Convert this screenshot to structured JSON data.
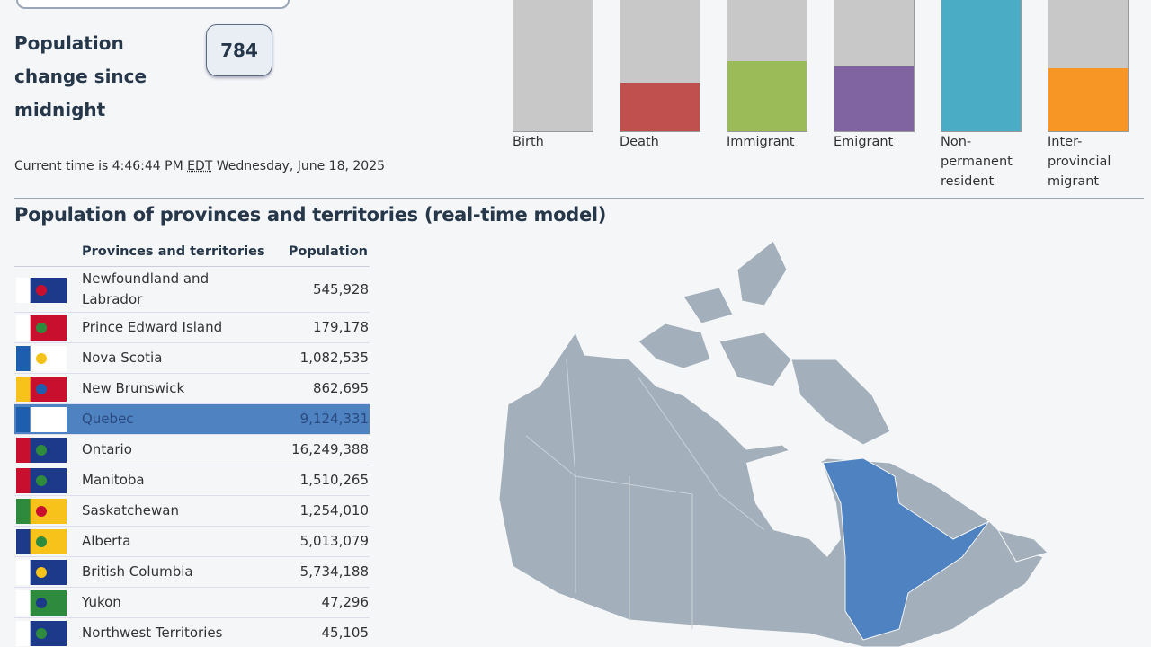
{
  "summary": {
    "change_label": "Population change since midnight",
    "change_value": "784",
    "time": {
      "prefix": "Current time is 4:46:44 PM",
      "zone": "EDT",
      "date": "Wednesday, June 18, 2025"
    }
  },
  "components": [
    {
      "label": "Birth",
      "fill": 0,
      "color": "#c8c8c8"
    },
    {
      "label": "Death",
      "fill": 0.34,
      "color": "#c0504d"
    },
    {
      "label": "Immigrant",
      "fill": 0.49,
      "color": "#9bbb59"
    },
    {
      "label": "Emigrant",
      "fill": 0.45,
      "color": "#8064a2"
    },
    {
      "label": "Non-permanent resident",
      "fill": 1,
      "color": "#4bacc6"
    },
    {
      "label": "Inter-provincial migrant",
      "fill": 0.44,
      "color": "#f79625"
    }
  ],
  "table": {
    "title": "Population of provinces and territories (real-time model)",
    "headers": [
      "Provinces and territories",
      "Population"
    ],
    "rows": [
      [
        "Newfoundland and Labrador",
        "545,928"
      ],
      [
        "Prince Edward Island",
        "179,178"
      ],
      [
        "Nova Scotia",
        "1,082,535"
      ],
      [
        "New Brunswick",
        "862,695"
      ],
      [
        "Quebec",
        "9,124,331"
      ],
      [
        "Ontario",
        "16,249,388"
      ],
      [
        "Manitoba",
        "1,510,265"
      ],
      [
        "Saskatchewan",
        "1,254,010"
      ],
      [
        "Alberta",
        "5,013,079"
      ],
      [
        "British Columbia",
        "5,734,188"
      ],
      [
        "Yukon",
        "47,296"
      ],
      [
        "Northwest Territories",
        "45,105"
      ]
    ],
    "selected": 4
  }
}
